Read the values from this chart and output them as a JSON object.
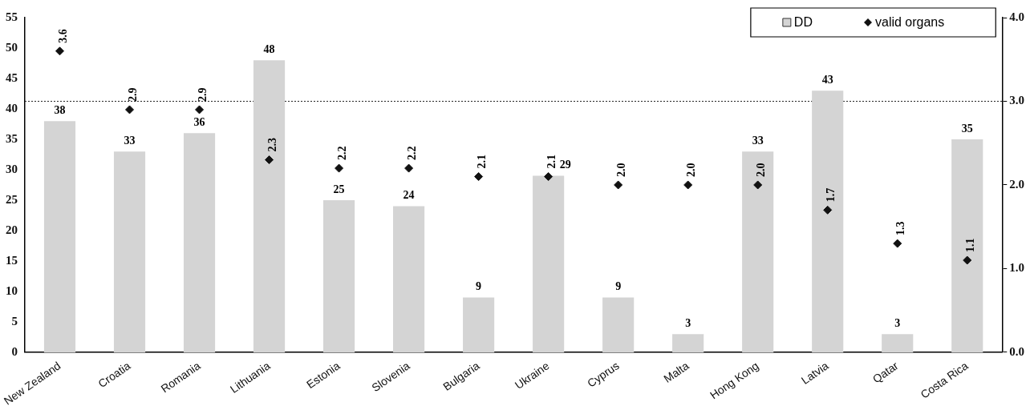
{
  "chart_data": {
    "type": "bar",
    "categories": [
      "New Zealand",
      "Croatia",
      "Romania",
      "Lithuania",
      "Estonia",
      "Slovenia",
      "Bulgaria",
      "Ukraine",
      "Cyprus",
      "Malta",
      "Hong Kong",
      "Latvia",
      "Qatar",
      "Costa Rica"
    ],
    "series": [
      {
        "name": "DD",
        "color": "#d4d4d4",
        "values": [
          38,
          33,
          36,
          48,
          25,
          24,
          9,
          29,
          9,
          3,
          33,
          43,
          3,
          35
        ]
      },
      {
        "name": "valid organs",
        "type": "scatter",
        "axis": "y2",
        "color": "#111111",
        "values": [
          3.6,
          2.9,
          2.9,
          2.3,
          2.2,
          2.2,
          2.1,
          2.1,
          2.0,
          2.0,
          2.0,
          1.7,
          1.3,
          1.1
        ],
        "value_labels": [
          "3.6",
          "2.9",
          "2.9",
          "2.3",
          "2.2",
          "2.2",
          "2.1",
          "2.1",
          "2.0",
          "2.0",
          "2.0",
          "1.7",
          "1.3",
          "1.1"
        ]
      }
    ],
    "ylim": [
      0,
      55
    ],
    "yticks": [
      0,
      5,
      10,
      15,
      20,
      25,
      30,
      35,
      40,
      45,
      50,
      55
    ],
    "y2lim": [
      0,
      4
    ],
    "y2ticks": [
      {
        "value": 0,
        "label": "0.0"
      },
      {
        "value": 1,
        "label": "1.0"
      },
      {
        "value": 2,
        "label": "2.0"
      },
      {
        "value": 3,
        "label": "3.0"
      },
      {
        "value": 4,
        "label": "4.0"
      }
    ],
    "ref_lines": [
      {
        "axis": "y2",
        "value": 3,
        "line_style": "dotted"
      }
    ],
    "marker": "diamond",
    "data_labels": true,
    "legend": "top right",
    "grid": false
  }
}
